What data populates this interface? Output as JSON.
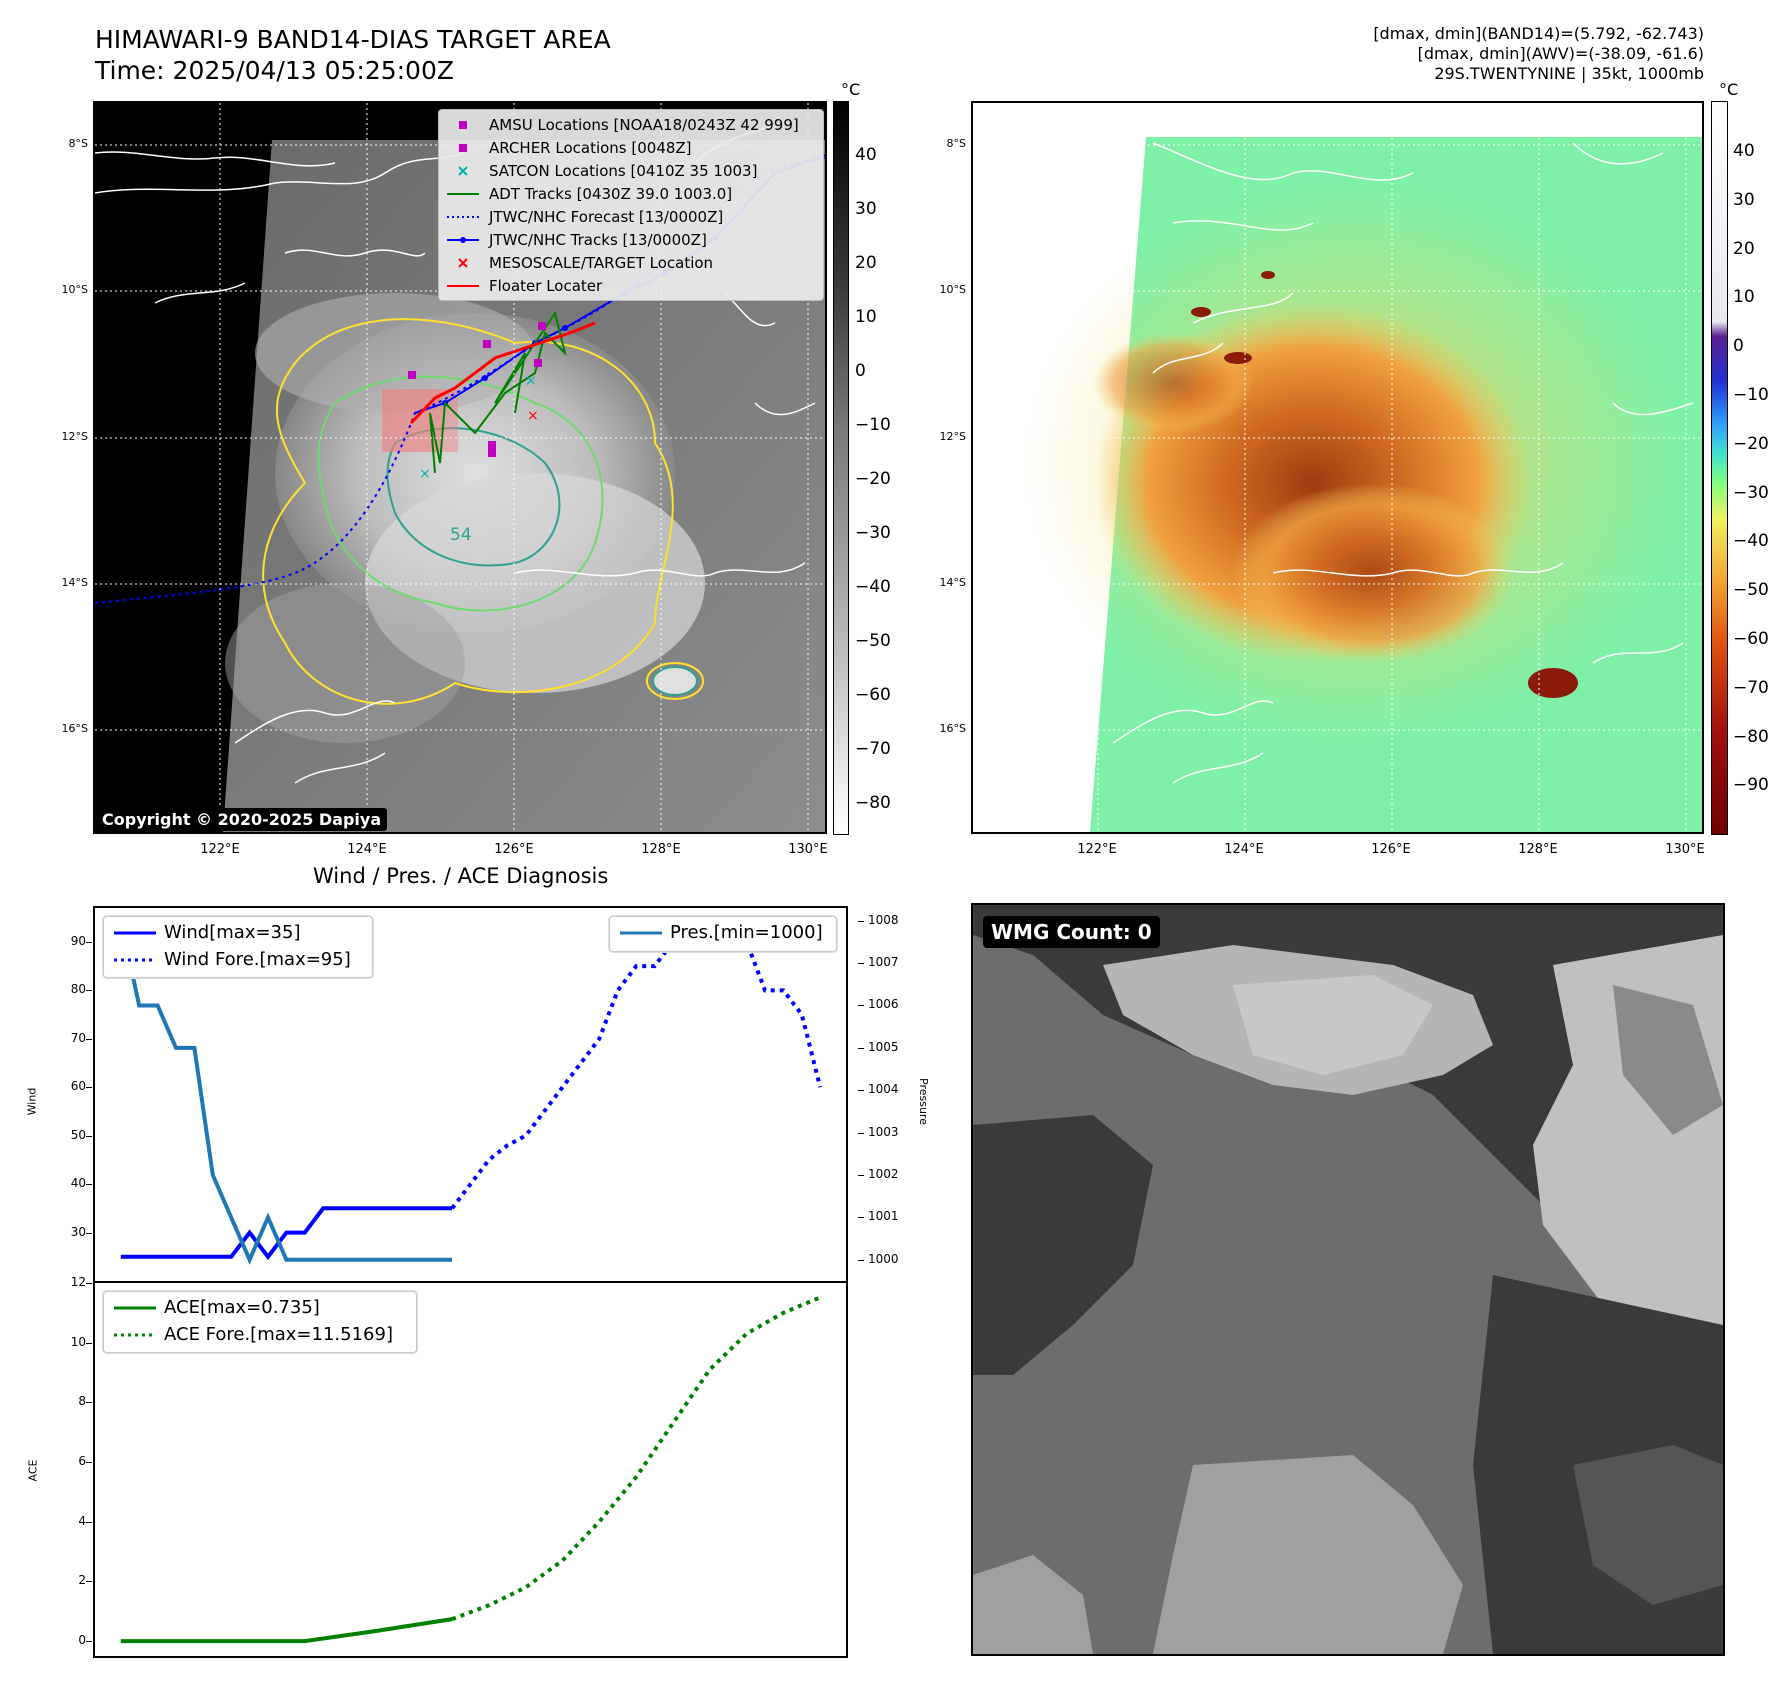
{
  "header": {
    "title": "HIMAWARI-9 BAND14-DIAS TARGET AREA",
    "time": "Time: 2025/04/13 05:25:00Z",
    "info_line1": "[dmax, dmin](BAND14)=(5.792, -62.743)",
    "info_line2": "[dmax, dmin](AWV)=(-38.09, -61.6)",
    "info_line3": "29S.TWENTYNINE | 35kt, 1000mb"
  },
  "map": {
    "lat_labels": [
      "8°S",
      "10°S",
      "12°S",
      "14°S",
      "16°S"
    ],
    "lon_labels": [
      "122°E",
      "124°E",
      "126°E",
      "128°E",
      "130°E"
    ],
    "annotation": "54",
    "copyright": "Copyright © 2020-2025 Dapiya",
    "colorbar_unit": "°C",
    "colorbar_ticks_gray": [
      "40",
      "30",
      "20",
      "10",
      "0",
      "−10",
      "−20",
      "−30",
      "−40",
      "−50",
      "−60",
      "−70",
      "−80"
    ],
    "colorbar_ticks_color": [
      "40",
      "30",
      "20",
      "10",
      "0",
      "−10",
      "−20",
      "−30",
      "−40",
      "−50",
      "−60",
      "−70",
      "−80",
      "−90"
    ],
    "legend": [
      {
        "label": "AMSU Locations [NOAA18/0243Z 42 999]",
        "symbol": "square",
        "color": "#c000c0"
      },
      {
        "label": "ARCHER Locations [0048Z]",
        "symbol": "square",
        "color": "#c000c0"
      },
      {
        "label": "SATCON Locations [0410Z 35 1003]",
        "symbol": "x",
        "color": "#00b0b0"
      },
      {
        "label": "ADT Tracks [0430Z 39.0 1003.0]",
        "symbol": "line",
        "color": "#008000"
      },
      {
        "label": "JTWC/NHC Forecast [13/0000Z]",
        "symbol": "dotted",
        "color": "#0000ff"
      },
      {
        "label": "JTWC/NHC Tracks [13/0000Z]",
        "symbol": "line-dot",
        "color": "#0000ff"
      },
      {
        "label": "MESOSCALE/TARGET Location",
        "symbol": "x",
        "color": "#ff0000"
      },
      {
        "label": "Floater Locater",
        "symbol": "line",
        "color": "#ff0000"
      }
    ]
  },
  "diagnosis": {
    "title": "Wind / Pres. / ACE Diagnosis",
    "wind_ylabel": "Wind",
    "pres_ylabel": "Pressure",
    "ace_ylabel": "ACE",
    "legend_wind": "Wind[max=35]",
    "legend_wind_fore": "Wind Fore.[max=95]",
    "legend_pres": "Pres.[min=1000]",
    "legend_ace": "ACE[max=0.735]",
    "legend_ace_fore": "ACE Fore.[max=11.5169]",
    "wmg": "WMG Count: 0"
  },
  "chart_data": [
    {
      "type": "line",
      "title": "Wind / Pres. / ACE Diagnosis",
      "ylabel": "Wind",
      "ylim": [
        20,
        97
      ],
      "yticks": [
        30,
        40,
        50,
        60,
        70,
        80,
        90
      ],
      "x": [
        0,
        1,
        2,
        3,
        4,
        5,
        6,
        7,
        8,
        9,
        10,
        11,
        12,
        13,
        14,
        15,
        16,
        17,
        18
      ],
      "series": [
        {
          "name": "Wind[max=35]",
          "color": "#0000ff",
          "style": "solid",
          "x": [
            0,
            1,
            2,
            3,
            4,
            5,
            6,
            7,
            8,
            9,
            10,
            11,
            12,
            13,
            14,
            15,
            16,
            17,
            18
          ],
          "values": [
            25,
            25,
            25,
            25,
            25,
            25,
            25,
            30,
            25,
            30,
            30,
            35,
            35,
            35,
            35,
            35,
            35,
            35,
            35
          ]
        },
        {
          "name": "Wind Fore.[max=95]",
          "color": "#0000ff",
          "style": "dotted",
          "x": [
            18,
            19,
            20,
            21,
            22,
            23,
            24,
            25,
            26,
            27,
            28,
            29,
            30,
            31,
            32,
            33,
            34,
            35,
            36,
            37,
            38
          ],
          "values": [
            35,
            40,
            45,
            48,
            50,
            55,
            60,
            65,
            70,
            80,
            85,
            85,
            90,
            95,
            95,
            95,
            90,
            80,
            80,
            75,
            60
          ]
        }
      ]
    },
    {
      "type": "line",
      "ylabel": "Pressure",
      "ylim": [
        999.5,
        1008.3
      ],
      "yticks": [
        1000,
        1001,
        1002,
        1003,
        1004,
        1005,
        1006,
        1007,
        1008
      ],
      "series": [
        {
          "name": "Pres.[min=1000]",
          "color": "#1f77b4",
          "style": "solid",
          "x": [
            0,
            1,
            2,
            3,
            4,
            5,
            6,
            7,
            8,
            9,
            10,
            11,
            12,
            13,
            14,
            15,
            16,
            17,
            18
          ],
          "values": [
            1008,
            1006,
            1006,
            1005,
            1005,
            1002,
            1001,
            1000,
            1001,
            1000,
            1000,
            1000,
            1000,
            1000,
            1000,
            1000,
            1000,
            1000,
            1000
          ]
        }
      ]
    },
    {
      "type": "line",
      "ylabel": "ACE",
      "ylim": [
        -0.5,
        12
      ],
      "yticks": [
        0,
        2,
        4,
        6,
        8,
        10,
        12
      ],
      "series": [
        {
          "name": "ACE[max=0.735]",
          "color": "#008000",
          "style": "solid",
          "x": [
            0,
            4,
            8,
            10,
            14,
            18
          ],
          "values": [
            0,
            0,
            0,
            0,
            0.35,
            0.735
          ]
        },
        {
          "name": "ACE Fore.[max=11.5169]",
          "color": "#008000",
          "style": "dotted",
          "x": [
            18,
            20,
            22,
            24,
            26,
            28,
            30,
            32,
            34,
            36,
            38
          ],
          "values": [
            0.735,
            1.2,
            1.8,
            2.7,
            4.0,
            5.5,
            7.3,
            9.1,
            10.3,
            11.0,
            11.5169
          ]
        }
      ]
    }
  ]
}
